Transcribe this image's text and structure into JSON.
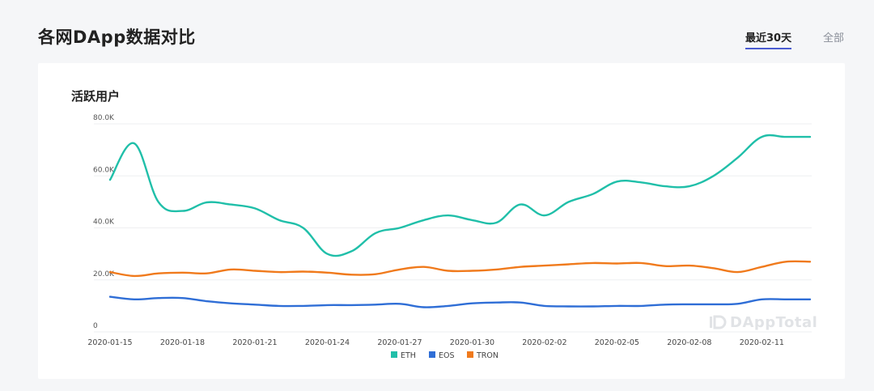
{
  "header": {
    "title": "各网DApp数据对比"
  },
  "tabs": [
    {
      "label": "最近30天",
      "active": true
    },
    {
      "label": "全部",
      "active": false
    }
  ],
  "card": {
    "title": "活跃用户"
  },
  "watermark": "DAppTotal",
  "chart_data": {
    "type": "line",
    "title": "活跃用户",
    "ylim": [
      0,
      80000
    ],
    "yticks": [
      {
        "value": 0,
        "label": "0"
      },
      {
        "value": 20000,
        "label": "20.0K"
      },
      {
        "value": 40000,
        "label": "40.0K"
      },
      {
        "value": 60000,
        "label": "60.0K"
      },
      {
        "value": 80000,
        "label": "80.0K"
      }
    ],
    "x": [
      "2020-01-15",
      "2020-01-16",
      "2020-01-17",
      "2020-01-18",
      "2020-01-19",
      "2020-01-20",
      "2020-01-21",
      "2020-01-22",
      "2020-01-23",
      "2020-01-24",
      "2020-01-25",
      "2020-01-26",
      "2020-01-27",
      "2020-01-28",
      "2020-01-29",
      "2020-01-30",
      "2020-01-31",
      "2020-02-01",
      "2020-02-02",
      "2020-02-03",
      "2020-02-04",
      "2020-02-05",
      "2020-02-06",
      "2020-02-07",
      "2020-02-08",
      "2020-02-09",
      "2020-02-10",
      "2020-02-11",
      "2020-02-12",
      "2020-02-13"
    ],
    "xtick_labels": [
      "2020-01-15",
      "2020-01-18",
      "2020-01-21",
      "2020-01-24",
      "2020-01-27",
      "2020-01-30",
      "2020-02-02",
      "2020-02-05",
      "2020-02-08",
      "2020-02-11"
    ],
    "grid": true,
    "legend_position": "bottom",
    "series": [
      {
        "name": "ETH",
        "color": "#20bfa9",
        "values": [
          58500,
          72500,
          50000,
          46500,
          49800,
          49000,
          47500,
          43000,
          40000,
          30000,
          31000,
          38000,
          40000,
          43000,
          44800,
          43000,
          42000,
          49000,
          44800,
          50000,
          53000,
          57800,
          57500,
          56000,
          56000,
          60000,
          67000,
          75000,
          75000,
          75000
        ]
      },
      {
        "name": "EOS",
        "color": "#2f6ed6",
        "values": [
          13500,
          12500,
          13000,
          13000,
          11800,
          11000,
          10500,
          10000,
          10000,
          10300,
          10300,
          10500,
          10800,
          9500,
          10000,
          11000,
          11300,
          11300,
          10000,
          9800,
          9800,
          10000,
          10000,
          10500,
          10600,
          10600,
          10800,
          12500,
          12500,
          12500
        ]
      },
      {
        "name": "TRON",
        "color": "#f07a1c",
        "values": [
          23000,
          21500,
          22500,
          22800,
          22500,
          24000,
          23500,
          23000,
          23200,
          22800,
          22000,
          22200,
          24000,
          25000,
          23500,
          23500,
          24000,
          25000,
          25500,
          26000,
          26500,
          26300,
          26500,
          25300,
          25500,
          24500,
          23000,
          25000,
          27000,
          27000
        ]
      }
    ]
  }
}
